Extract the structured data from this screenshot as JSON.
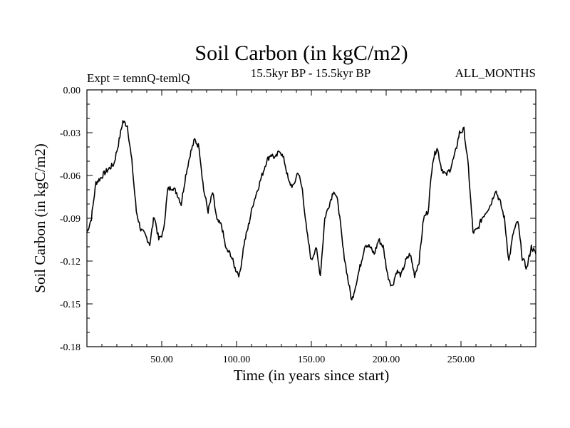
{
  "chart_data": {
    "type": "line",
    "title": "Soil Carbon (in kgC/m2)",
    "left_label": "Expt = temnQ-temlQ",
    "center_label": "15.5kyr BP - 15.5kyr BP",
    "right_label": "ALL_MONTHS",
    "xlabel": "Time (in years since start)",
    "ylabel": "Soil Carbon (in kgC/m2)",
    "xlim": [
      0,
      300
    ],
    "ylim": [
      -0.18,
      0.0
    ],
    "xticks": [
      50,
      100,
      150,
      200,
      250
    ],
    "xtick_labels": [
      "50.00",
      "100.00",
      "150.00",
      "200.00",
      "250.00"
    ],
    "yticks": [
      0.0,
      -0.03,
      -0.06,
      -0.09,
      -0.12,
      -0.15,
      -0.18
    ],
    "ytick_labels": [
      "0.00",
      "-0.03",
      "-0.06",
      "-0.09",
      "-0.12",
      "-0.15",
      "-0.18"
    ],
    "grid": false,
    "series": [
      {
        "name": "temnQ-temlQ",
        "color": "#000000",
        "x": [
          0,
          3,
          6,
          9,
          12,
          15,
          18,
          21,
          24,
          27,
          30,
          33,
          36,
          39,
          42,
          45,
          48,
          51,
          54,
          57,
          60,
          63,
          66,
          69,
          72,
          75,
          78,
          81,
          84,
          87,
          90,
          93,
          96,
          99,
          102,
          105,
          108,
          111,
          114,
          117,
          120,
          123,
          126,
          129,
          132,
          135,
          138,
          141,
          144,
          147,
          150,
          153,
          156,
          159,
          162,
          165,
          168,
          171,
          174,
          177,
          180,
          183,
          186,
          189,
          192,
          195,
          198,
          201,
          204,
          207,
          210,
          213,
          216,
          219,
          222,
          225,
          228,
          231,
          234,
          237,
          240,
          243,
          246,
          249,
          252,
          255,
          258,
          261,
          264,
          267,
          270,
          273,
          276,
          279,
          282,
          285,
          288,
          291,
          294,
          297,
          300
        ],
        "y": [
          -0.1,
          -0.09,
          -0.065,
          -0.062,
          -0.058,
          -0.055,
          -0.052,
          -0.038,
          -0.022,
          -0.025,
          -0.05,
          -0.085,
          -0.098,
          -0.102,
          -0.108,
          -0.088,
          -0.105,
          -0.1,
          -0.07,
          -0.068,
          -0.072,
          -0.08,
          -0.06,
          -0.045,
          -0.035,
          -0.04,
          -0.07,
          -0.085,
          -0.072,
          -0.092,
          -0.095,
          -0.112,
          -0.115,
          -0.125,
          -0.13,
          -0.108,
          -0.095,
          -0.08,
          -0.07,
          -0.06,
          -0.05,
          -0.045,
          -0.048,
          -0.042,
          -0.05,
          -0.065,
          -0.068,
          -0.057,
          -0.07,
          -0.1,
          -0.12,
          -0.11,
          -0.13,
          -0.09,
          -0.08,
          -0.07,
          -0.08,
          -0.11,
          -0.13,
          -0.148,
          -0.135,
          -0.122,
          -0.108,
          -0.11,
          -0.115,
          -0.105,
          -0.11,
          -0.13,
          -0.138,
          -0.127,
          -0.13,
          -0.12,
          -0.115,
          -0.13,
          -0.12,
          -0.09,
          -0.085,
          -0.05,
          -0.04,
          -0.055,
          -0.06,
          -0.055,
          -0.045,
          -0.03,
          -0.028,
          -0.055,
          -0.1,
          -0.098,
          -0.09,
          -0.085,
          -0.08,
          -0.07,
          -0.078,
          -0.09,
          -0.12,
          -0.1,
          -0.092,
          -0.118,
          -0.125,
          -0.11,
          -0.115
        ]
      }
    ]
  }
}
